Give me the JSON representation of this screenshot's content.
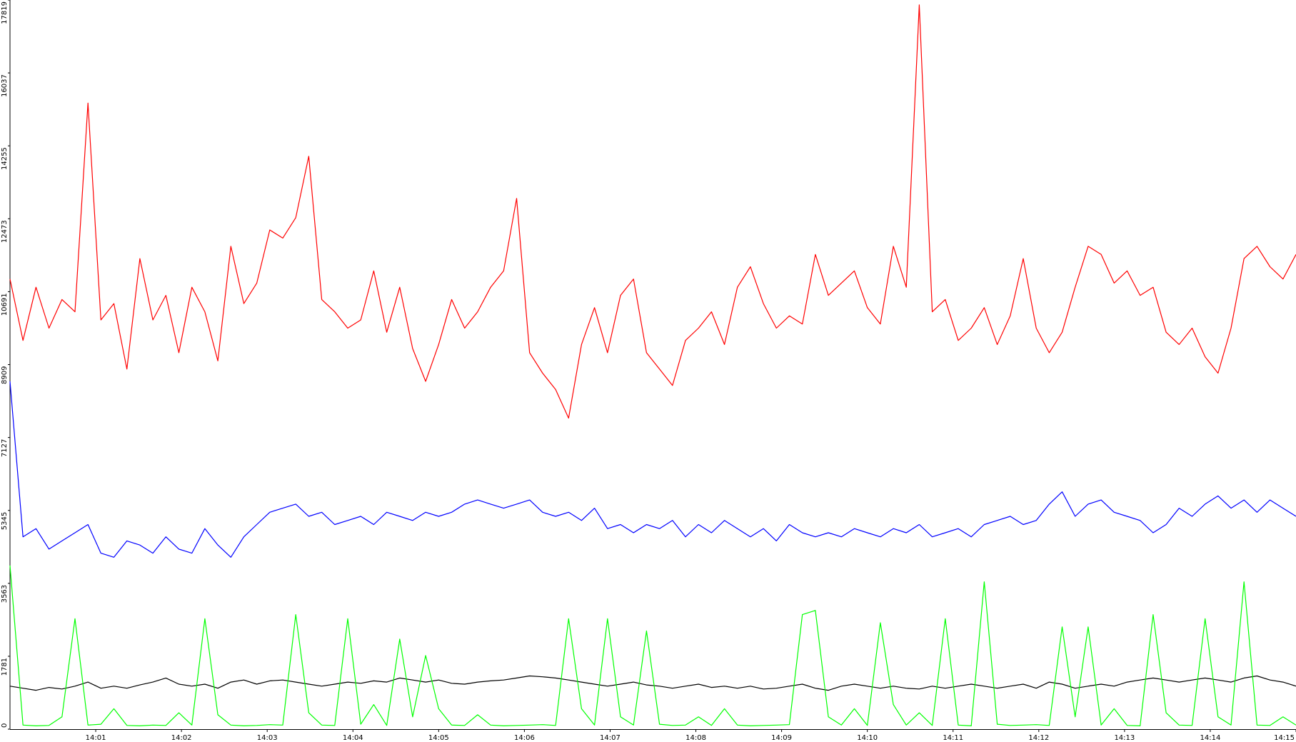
{
  "chart_data": {
    "type": "line",
    "xlim": [
      "14:00",
      "14:15"
    ],
    "xticks": [
      "14:01",
      "14:02",
      "14:03",
      "14:04",
      "14:05",
      "14:06",
      "14:07",
      "14:08",
      "14:09",
      "14:10",
      "14:11",
      "14:12",
      "14:13",
      "14:14",
      "14:15"
    ],
    "ylim": [
      0,
      17819
    ],
    "yticks": [
      0,
      1781,
      3563,
      5345,
      7127,
      8909,
      10691,
      12473,
      14255,
      16037,
      17819
    ],
    "series": [
      {
        "color": "#ff0000",
        "values": [
          11000,
          9500,
          10800,
          9800,
          10500,
          10200,
          15300,
          10000,
          10400,
          8800,
          11500,
          10000,
          10600,
          9200,
          10800,
          10200,
          9000,
          11800,
          10400,
          10900,
          12200,
          12000,
          12500,
          14000,
          10500,
          10200,
          9800,
          10000,
          11200,
          9700,
          10800,
          9300,
          8500,
          9400,
          10500,
          9800,
          10200,
          10800,
          11200,
          12970,
          9200,
          8700,
          8300,
          7600,
          9400,
          10300,
          9200,
          10600,
          11000,
          9200,
          8800,
          8400,
          9500,
          9800,
          10200,
          9400,
          10800,
          11300,
          10400,
          9800,
          10100,
          9900,
          11600,
          10600,
          10900,
          11200,
          10300,
          9900,
          11800,
          10800,
          17700,
          10200,
          10500,
          9500,
          9800,
          10300,
          9400,
          10100,
          11500,
          9800,
          9200,
          9700,
          10800,
          11800,
          11600,
          10900,
          11200,
          10600,
          10800,
          9700,
          9400,
          9800,
          9100,
          8700,
          9800,
          11500,
          11800,
          11300,
          11000,
          11600
        ]
      },
      {
        "color": "#0000ff",
        "values": [
          8500,
          4700,
          4900,
          4400,
          4600,
          4800,
          5000,
          4300,
          4200,
          4600,
          4500,
          4300,
          4700,
          4400,
          4300,
          4900,
          4500,
          4200,
          4700,
          5000,
          5300,
          5400,
          5500,
          5200,
          5300,
          5000,
          5100,
          5200,
          5000,
          5300,
          5200,
          5100,
          5300,
          5200,
          5300,
          5500,
          5600,
          5500,
          5400,
          5500,
          5600,
          5300,
          5200,
          5300,
          5100,
          5400,
          4900,
          5000,
          4800,
          5000,
          4900,
          5100,
          4700,
          5000,
          4800,
          5100,
          4900,
          4700,
          4900,
          4600,
          5000,
          4800,
          4700,
          4800,
          4700,
          4900,
          4800,
          4700,
          4900,
          4800,
          5000,
          4700,
          4800,
          4900,
          4700,
          5000,
          5100,
          5200,
          5000,
          5100,
          5500,
          5800,
          5200,
          5500,
          5600,
          5300,
          5200,
          5100,
          4800,
          5000,
          5400,
          5200,
          5500,
          5700,
          5400,
          5600,
          5300,
          5600,
          5400,
          5200
        ]
      },
      {
        "color": "#000000",
        "values": [
          1050,
          1000,
          950,
          1020,
          980,
          1050,
          1150,
          1000,
          1050,
          1000,
          1080,
          1150,
          1250,
          1100,
          1050,
          1100,
          1000,
          1150,
          1200,
          1100,
          1180,
          1200,
          1150,
          1100,
          1050,
          1100,
          1150,
          1120,
          1180,
          1150,
          1250,
          1200,
          1150,
          1200,
          1120,
          1100,
          1150,
          1180,
          1200,
          1250,
          1300,
          1280,
          1250,
          1200,
          1150,
          1100,
          1050,
          1100,
          1150,
          1080,
          1050,
          1000,
          1050,
          1100,
          1020,
          1050,
          1000,
          1050,
          980,
          1000,
          1050,
          1100,
          1000,
          950,
          1050,
          1100,
          1050,
          1000,
          1050,
          1000,
          980,
          1050,
          1000,
          1050,
          1100,
          1050,
          1000,
          1050,
          1100,
          1000,
          1150,
          1100,
          1000,
          1050,
          1100,
          1050,
          1150,
          1200,
          1250,
          1200,
          1150,
          1200,
          1250,
          1200,
          1150,
          1250,
          1300,
          1200,
          1150,
          1050
        ]
      },
      {
        "color": "#00ff00",
        "values": [
          4000,
          100,
          80,
          90,
          300,
          2700,
          100,
          120,
          500,
          90,
          80,
          100,
          90,
          400,
          100,
          2700,
          350,
          100,
          80,
          90,
          110,
          100,
          2800,
          400,
          100,
          90,
          2700,
          120,
          600,
          90,
          2200,
          300,
          1800,
          500,
          100,
          90,
          350,
          100,
          80,
          90,
          100,
          110,
          90,
          2700,
          500,
          100,
          2700,
          300,
          100,
          2400,
          120,
          90,
          100,
          300,
          90,
          500,
          100,
          80,
          90,
          100,
          110,
          2800,
          2900,
          300,
          100,
          500,
          90,
          2600,
          600,
          100,
          400,
          90,
          2700,
          100,
          80,
          3600,
          120,
          90,
          100,
          110,
          90,
          2500,
          300,
          2500,
          100,
          500,
          90,
          80,
          2800,
          400,
          100,
          90,
          2700,
          300,
          100,
          3600,
          100,
          90,
          300,
          100
        ]
      }
    ]
  }
}
